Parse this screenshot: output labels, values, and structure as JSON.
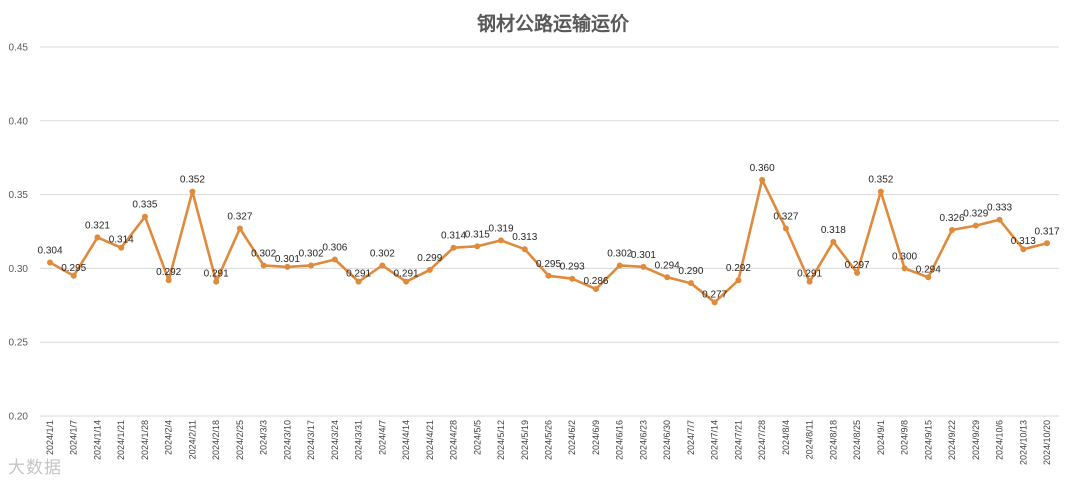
{
  "chart_data": {
    "type": "line",
    "title": "钢材公路运输运价",
    "xlabel": "",
    "ylabel": "",
    "ylim": [
      0.2,
      0.45
    ],
    "yticks": [
      "0.20",
      "0.25",
      "0.30",
      "0.35",
      "0.40",
      "0.45"
    ],
    "grid": true,
    "categories": [
      "2024/1/1",
      "2024/1/7",
      "2024/1/14",
      "2024/1/21",
      "2024/1/28",
      "2024/2/4",
      "2024/2/11",
      "2024/2/18",
      "2024/2/25",
      "2024/3/3",
      "2024/3/10",
      "2024/3/17",
      "2024/3/24",
      "2024/3/31",
      "2024/4/7",
      "2024/4/14",
      "2024/4/21",
      "2024/4/28",
      "2024/5/5",
      "2024/5/12",
      "2024/5/19",
      "2024/5/26",
      "2024/6/2",
      "2024/6/9",
      "2024/6/16",
      "2024/6/23",
      "2024/6/30",
      "2024/7/7",
      "2024/7/14",
      "2024/7/21",
      "2024/7/28",
      "2024/8/4",
      "2024/8/11",
      "2024/8/18",
      "2024/8/25",
      "2024/9/1",
      "2024/9/8",
      "2024/9/15",
      "2024/9/22",
      "2024/9/29",
      "2024/10/6",
      "2024/10/13",
      "2024/10/20"
    ],
    "values": [
      0.304,
      0.295,
      0.321,
      0.314,
      0.335,
      0.292,
      0.352,
      0.291,
      0.327,
      0.302,
      0.301,
      0.302,
      0.306,
      0.291,
      0.302,
      0.291,
      0.299,
      0.314,
      0.315,
      0.319,
      0.313,
      0.295,
      0.293,
      0.286,
      0.302,
      0.301,
      0.294,
      0.29,
      0.277,
      0.292,
      0.36,
      0.327,
      0.291,
      0.318,
      0.297,
      0.352,
      0.3,
      0.294,
      0.326,
      0.329,
      0.333,
      0.313,
      0.317
    ],
    "line_color": "#E08A3C"
  },
  "watermark": "大数据"
}
